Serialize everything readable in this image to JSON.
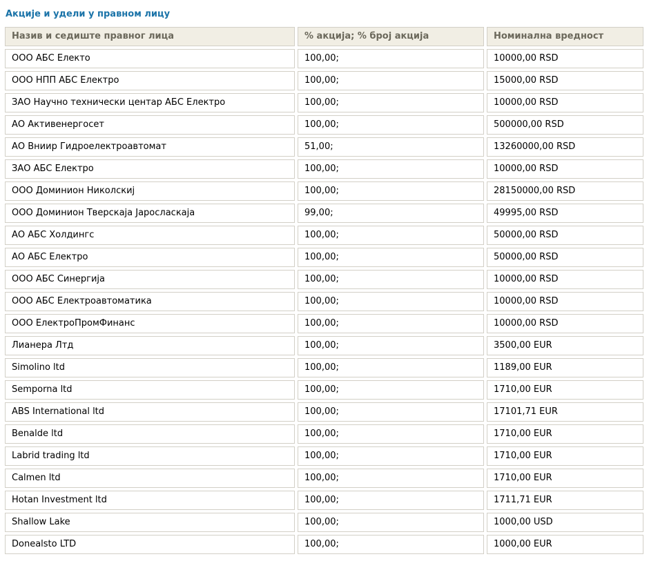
{
  "page": {
    "title": "Акције и удели у правном лицу"
  },
  "colors": {
    "title_text": "#1a73a8",
    "header_bg": "#f1eee4",
    "header_text": "#6b685b",
    "cell_border": "#d2cfc6",
    "cell_bg": "#ffffff"
  },
  "table": {
    "columns": [
      "Назив и седиште правног лица",
      "% акција; % број акција",
      "Номинална вредност"
    ],
    "rows": [
      [
        "ООО АБС Електо",
        "100,00;",
        "10000,00 RSD"
      ],
      [
        "ООО НПП АБС Електро",
        "100,00;",
        "15000,00 RSD"
      ],
      [
        "ЗАО Научно технически центар АБС Електро",
        "100,00;",
        "10000,00 RSD"
      ],
      [
        "АО Активенергосет",
        "100,00;",
        "500000,00 RSD"
      ],
      [
        "АО Вниир Гидроелектроавтомат",
        "51,00;",
        "13260000,00 RSD"
      ],
      [
        "ЗАО АБС Електро",
        "100,00;",
        "10000,00 RSD"
      ],
      [
        "ООО Доминион Николскиј",
        "100,00;",
        "28150000,00 RSD"
      ],
      [
        "ООО Доминион Тверскаја Јаросласкаја",
        "99,00;",
        "49995,00 RSD"
      ],
      [
        "АО АБС Холдингс",
        "100,00;",
        "50000,00 RSD"
      ],
      [
        "АО АБС Електро",
        "100,00;",
        "50000,00 RSD"
      ],
      [
        "ООО АБС Синергија",
        "100,00;",
        "10000,00 RSD"
      ],
      [
        "ООО АБС Електроавтоматика",
        "100,00;",
        "10000,00 RSD"
      ],
      [
        "ООО ЕлектроПромФинанс",
        "100,00;",
        "10000,00 RSD"
      ],
      [
        "Лианера Лтд",
        "100,00;",
        "3500,00 EUR"
      ],
      [
        "Simolino ltd",
        "100,00;",
        "1189,00 EUR"
      ],
      [
        "Semporna ltd",
        "100,00;",
        "1710,00 EUR"
      ],
      [
        "ABS International ltd",
        "100,00;",
        "17101,71 EUR"
      ],
      [
        "Benalde ltd",
        "100,00;",
        "1710,00 EUR"
      ],
      [
        "Labrid trading ltd",
        "100,00;",
        "1710,00 EUR"
      ],
      [
        "Calmen ltd",
        "100,00;",
        "1710,00 EUR"
      ],
      [
        "Hotan Investment ltd",
        "100,00;",
        "1711,71 EUR"
      ],
      [
        "Shallow Lake",
        "100,00;",
        "1000,00 USD"
      ],
      [
        "Donealsto LTD",
        "100,00;",
        "1000,00 EUR"
      ]
    ]
  }
}
